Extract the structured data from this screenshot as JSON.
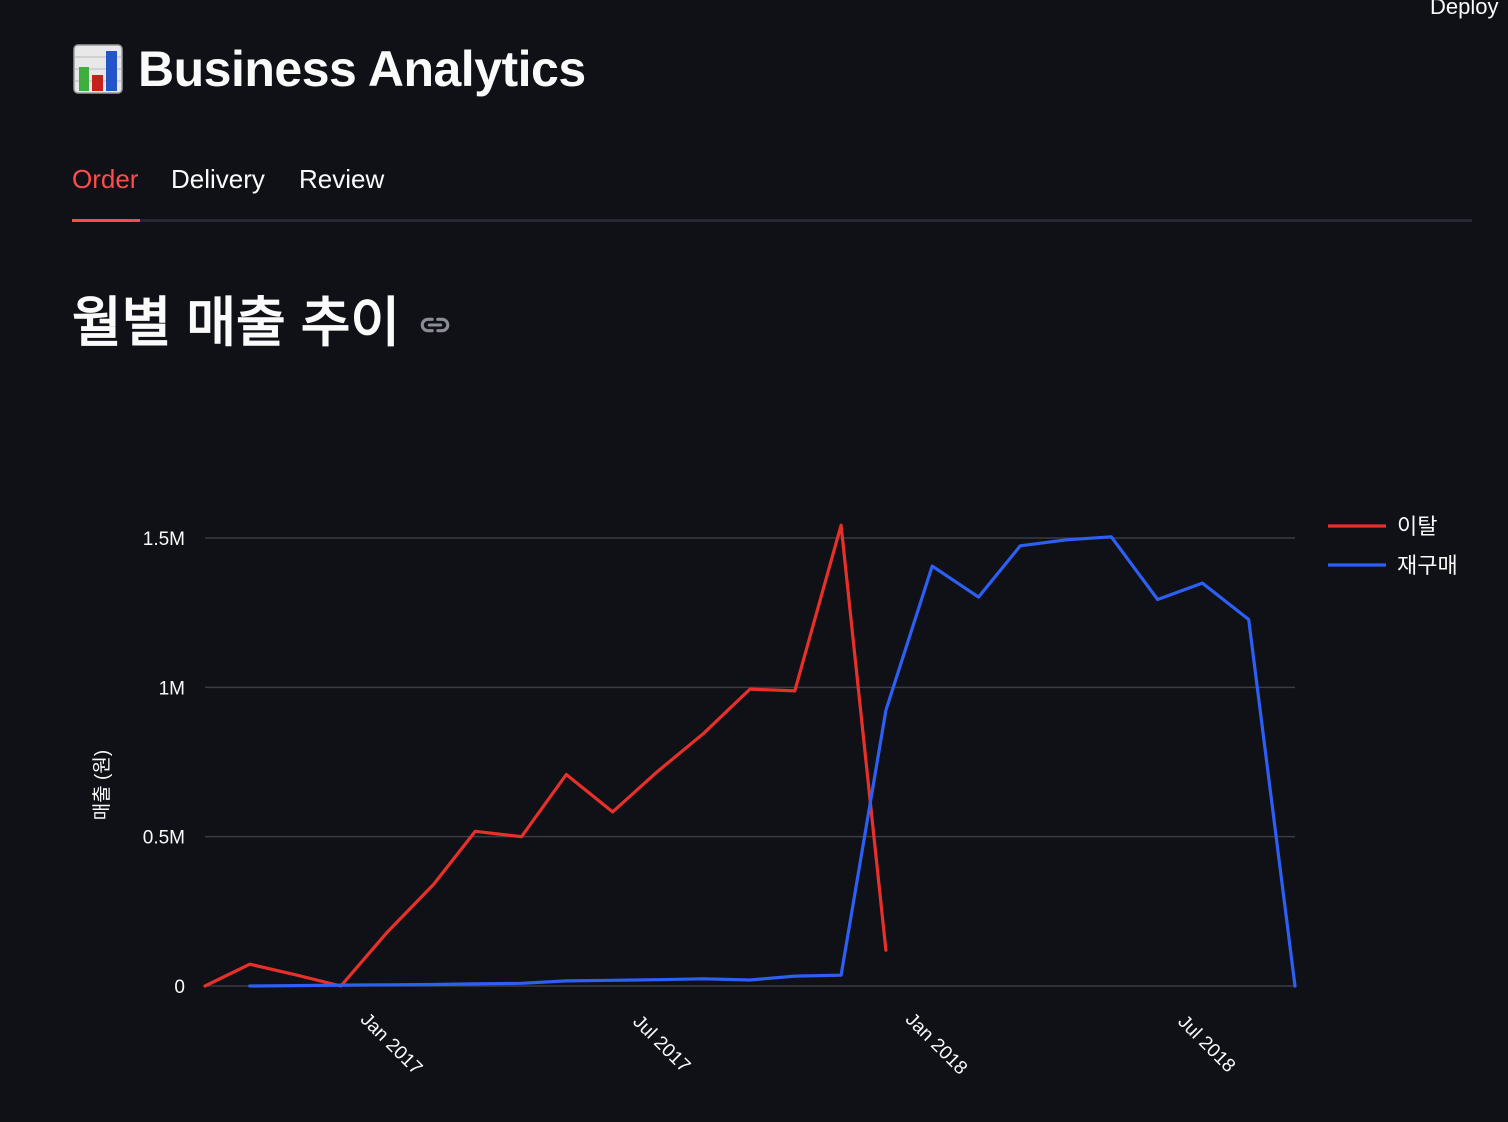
{
  "header": {
    "deploy_label": "Deploy",
    "app_title": "Business Analytics",
    "title_icon": "bar-chart-emoji"
  },
  "tabs": [
    {
      "label": "Order",
      "active": true
    },
    {
      "label": "Delivery",
      "active": false
    },
    {
      "label": "Review",
      "active": false
    }
  ],
  "section": {
    "title": "월별 매출 추이",
    "link_icon": "link-icon"
  },
  "colors": {
    "accent": "#ff4b4b",
    "background": "#0f1117",
    "series_churn": "#e8302a",
    "series_repurchase": "#2d5ff5"
  },
  "chart_data": {
    "type": "line",
    "title": "",
    "xlabel": "",
    "ylabel": "매출 (원)",
    "x_tick_labels": [
      "Jan 2017",
      "Jul 2017",
      "Jan 2018",
      "Jul 2018"
    ],
    "x_tick_dates": [
      "2017-01-01",
      "2017-07-01",
      "2018-01-01",
      "2018-07-01"
    ],
    "x_range": [
      "2016-09-01",
      "2018-09-01"
    ],
    "y_tick_labels": [
      "0",
      "0.5M",
      "1M",
      "1.5M"
    ],
    "y_tick_values": [
      0,
      500000,
      1000000,
      1500000
    ],
    "ylim": [
      0,
      1500000
    ],
    "grid": true,
    "legend_position": "top-right",
    "series": [
      {
        "name": "이탈",
        "color": "#e8302a",
        "points": [
          [
            "2016-09-01",
            0
          ],
          [
            "2016-10-01",
            73000
          ],
          [
            "2016-11-01",
            37000
          ],
          [
            "2016-12-01",
            0
          ],
          [
            "2017-01-01",
            180000
          ],
          [
            "2017-02-01",
            340000
          ],
          [
            "2017-03-01",
            518000
          ],
          [
            "2017-04-01",
            500000
          ],
          [
            "2017-05-01",
            708000
          ],
          [
            "2017-06-01",
            583000
          ],
          [
            "2017-07-01",
            718000
          ],
          [
            "2017-08-01",
            846000
          ],
          [
            "2017-09-01",
            994000
          ],
          [
            "2017-10-01",
            988000
          ],
          [
            "2017-11-01",
            1543000
          ],
          [
            "2017-12-01",
            120000
          ]
        ]
      },
      {
        "name": "재구매",
        "color": "#2d5ff5",
        "points": [
          [
            "2016-10-01",
            0
          ],
          [
            "2016-11-01",
            1500
          ],
          [
            "2016-12-01",
            3000
          ],
          [
            "2017-01-01",
            4000
          ],
          [
            "2017-02-01",
            5000
          ],
          [
            "2017-03-01",
            7000
          ],
          [
            "2017-04-01",
            9000
          ],
          [
            "2017-05-01",
            17000
          ],
          [
            "2017-06-01",
            19000
          ],
          [
            "2017-07-01",
            21000
          ],
          [
            "2017-08-01",
            24000
          ],
          [
            "2017-09-01",
            20000
          ],
          [
            "2017-10-01",
            33000
          ],
          [
            "2017-11-01",
            36000
          ],
          [
            "2017-12-01",
            923000
          ],
          [
            "2018-01-01",
            1406000
          ],
          [
            "2018-02-01",
            1302000
          ],
          [
            "2018-03-01",
            1474000
          ],
          [
            "2018-04-01",
            1494000
          ],
          [
            "2018-05-01",
            1504000
          ],
          [
            "2018-06-01",
            1294000
          ],
          [
            "2018-07-01",
            1349000
          ],
          [
            "2018-08-01",
            1227000
          ],
          [
            "2018-09-01",
            0
          ]
        ]
      }
    ]
  }
}
